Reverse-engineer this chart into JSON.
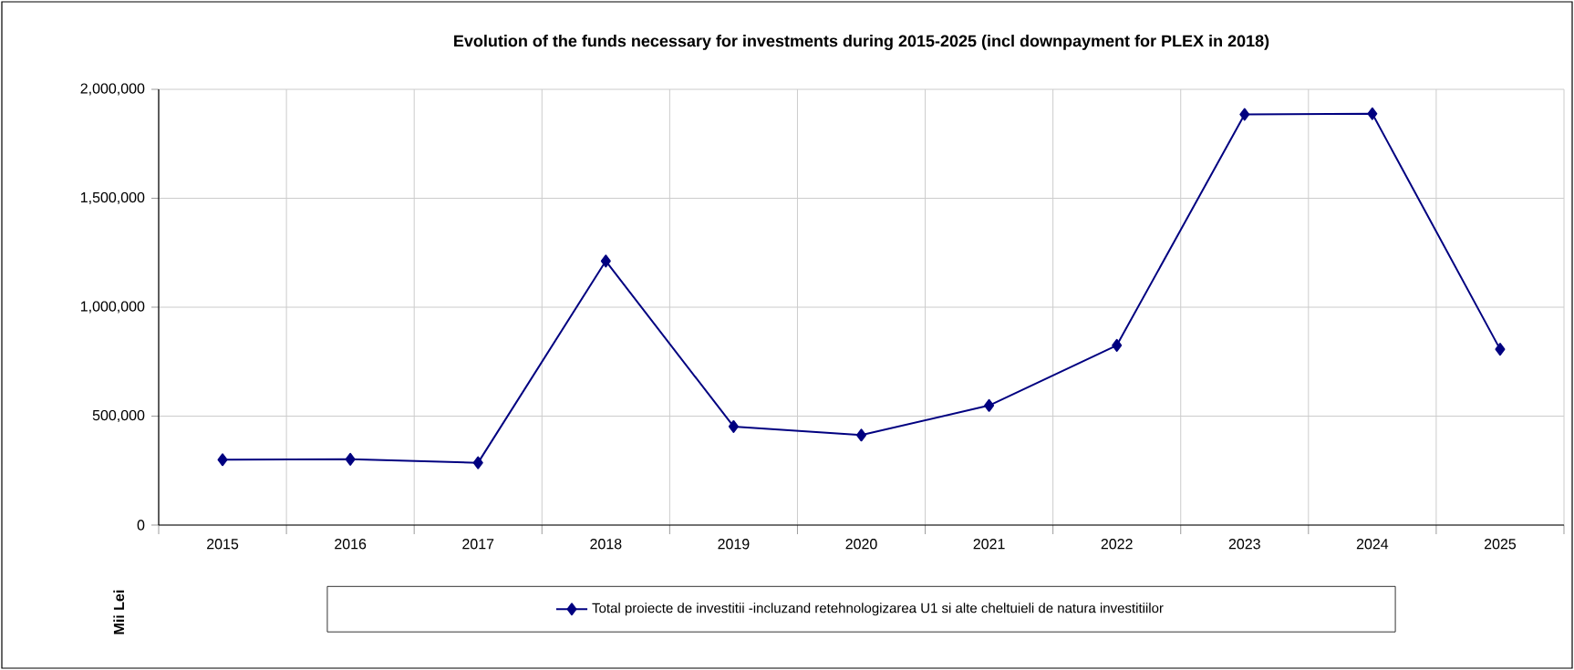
{
  "chart_data": {
    "type": "line",
    "title": "Evolution of the funds necessary for investments during 2015-2025 (incl downpayment for PLEX in 2018)",
    "ylabel": "Mii Lei",
    "categories": [
      "2015",
      "2016",
      "2017",
      "2018",
      "2019",
      "2020",
      "2021",
      "2022",
      "2023",
      "2024",
      "2025"
    ],
    "series": [
      {
        "name": "Total proiecte de investitii -incluzand retehnologizarea U1 si alte cheltuieli de natura investitiilor",
        "color": "#000080",
        "values": [
          300000,
          302000,
          286000,
          1212000,
          452000,
          413000,
          549000,
          825000,
          1885000,
          1888000,
          807000
        ]
      }
    ],
    "ylim": [
      0,
      2000000
    ],
    "yticks": [
      0,
      {
        "value": 500000,
        "label": "500,000"
      },
      {
        "value": 1000000,
        "label": "1,000,000"
      },
      {
        "value": 1500000,
        "label": "1,500,000"
      },
      {
        "value": 2000000,
        "label": "2,000,000"
      }
    ],
    "grid": true,
    "legend": "bottom",
    "marker": "diamond",
    "line_style": "solid"
  }
}
